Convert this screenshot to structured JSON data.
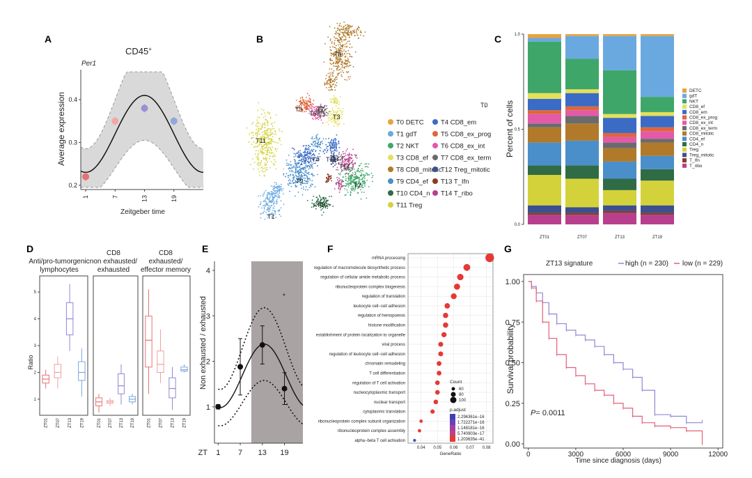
{
  "panels": {
    "A": {
      "letter": "A",
      "title": "CD45",
      "title_sup": "+",
      "gene": "Per1",
      "ylabel": "Average expression",
      "xlabel": "Zeitgeber time",
      "xticks": [
        "1",
        "7",
        "13",
        "19"
      ],
      "yticks": [
        "0.2",
        "0.3",
        "0.4"
      ],
      "chart_data": {
        "type": "scatter",
        "x": [
          1,
          7,
          13,
          19
        ],
        "y": [
          0.22,
          0.35,
          0.38,
          0.35
        ],
        "colors": [
          "#e57373",
          "#f4a6a6",
          "#9b8fd6",
          "#8fa8d6"
        ],
        "ylim": [
          0.19,
          0.47
        ],
        "xlim": [
          0,
          25
        ]
      }
    },
    "B": {
      "letter": "B",
      "clusters": [
        {
          "id": "T0",
          "label": "T0 DETC",
          "color": "#e8a33d"
        },
        {
          "id": "T1",
          "label": "T1 gdT",
          "color": "#6aa9e0"
        },
        {
          "id": "T2",
          "label": "T2 NKT",
          "color": "#3fa66a"
        },
        {
          "id": "T3",
          "label": "T3 CD8_ef",
          "color": "#e5e05a"
        },
        {
          "id": "T4",
          "label": "T4 CD8_em",
          "color": "#3b6bc4"
        },
        {
          "id": "T5",
          "label": "T5 CD8_ex_prog",
          "color": "#e0663a"
        },
        {
          "id": "T6",
          "label": "T6 CD8_ex_int",
          "color": "#e25aa8"
        },
        {
          "id": "T7",
          "label": "T7 CD8_ex_term",
          "color": "#6b6b6b"
        },
        {
          "id": "T8",
          "label": "T8 CD8_mitotic",
          "color": "#b07a2a"
        },
        {
          "id": "T9",
          "label": "T9 CD4_ef",
          "color": "#4a8fc9"
        },
        {
          "id": "T10",
          "label": "T10 CD4_n",
          "color": "#2f6b45"
        },
        {
          "id": "T11",
          "label": "T11 Treg",
          "color": "#d4d23a"
        },
        {
          "id": "T12",
          "label": "T12 Treg_mitotic",
          "color": "#3c4f8f"
        },
        {
          "id": "T13",
          "label": "T13 T_Ifn",
          "color": "#8a3b22"
        },
        {
          "id": "T14",
          "label": "T14 T_ribo",
          "color": "#b83f8e"
        }
      ]
    },
    "C": {
      "letter": "C",
      "ylabel": "Percent of cells",
      "yticks": [
        "0.0",
        "0.5",
        "1.0"
      ],
      "chart_data": {
        "type": "bar",
        "stacked": true,
        "categories": [
          "ZT01",
          "ZT07",
          "ZT13",
          "ZT19"
        ],
        "series": [
          {
            "name": "T_ribo",
            "color": "#b83f8e",
            "values": [
              0.05,
              0.05,
              0.06,
              0.05
            ]
          },
          {
            "name": "T_Ifn",
            "color": "#8a3b22",
            "values": [
              0.01,
              0.01,
              0.01,
              0.01
            ]
          },
          {
            "name": "Treg_mitotic",
            "color": "#3c4f8f",
            "values": [
              0.04,
              0.03,
              0.03,
              0.04
            ]
          },
          {
            "name": "Treg",
            "color": "#d4d23a",
            "values": [
              0.16,
              0.15,
              0.08,
              0.13
            ]
          },
          {
            "name": "CD4_n",
            "color": "#2f6b45",
            "values": [
              0.05,
              0.07,
              0.06,
              0.06
            ]
          },
          {
            "name": "CD4_ef",
            "color": "#4a8fc9",
            "values": [
              0.12,
              0.13,
              0.09,
              0.07
            ]
          },
          {
            "name": "CD8_mitotic",
            "color": "#b07a2a",
            "values": [
              0.08,
              0.09,
              0.07,
              0.07
            ]
          },
          {
            "name": "CD8_ex_term",
            "color": "#6b6b6b",
            "values": [
              0.02,
              0.04,
              0.03,
              0.02
            ]
          },
          {
            "name": "CD8_ex_int",
            "color": "#e25aa8",
            "values": [
              0.05,
              0.03,
              0.03,
              0.04
            ]
          },
          {
            "name": "CD8_ex_prog",
            "color": "#e0663a",
            "values": [
              0.02,
              0.02,
              0.02,
              0.02
            ]
          },
          {
            "name": "CD8_em",
            "color": "#3b6bc4",
            "values": [
              0.06,
              0.07,
              0.08,
              0.06
            ]
          },
          {
            "name": "CD8_ef",
            "color": "#e5e05a",
            "values": [
              0.03,
              0.02,
              0.02,
              0.02
            ]
          },
          {
            "name": "NKT",
            "color": "#3fa66a",
            "values": [
              0.27,
              0.16,
              0.23,
              0.08
            ]
          },
          {
            "name": "gdT",
            "color": "#6aa9e0",
            "values": [
              0.02,
              0.12,
              0.18,
              0.32
            ]
          },
          {
            "name": "DETC",
            "color": "#e8a33d",
            "values": [
              0.02,
              0.01,
              0.01,
              0.01
            ]
          }
        ],
        "legend": [
          "DETC",
          "gdT",
          "NKT",
          "CD8_ef",
          "CD8_em",
          "CD8_ex_prog",
          "CD8_ex_int",
          "CD8_ex_term",
          "CD8_mitotic",
          "CD4_ef",
          "CD4_n",
          "Treg",
          "Treg_mitotic",
          "T_Ifn",
          "T_ribo"
        ]
      }
    },
    "D": {
      "letter": "D",
      "ylabel": "Ratio",
      "yticks": [
        "1",
        "2",
        "3",
        "4",
        "5"
      ],
      "subtitles": [
        "Anti/pro-tumorgenic",
        "lymphocytes",
        "CD8",
        "non exhausted/",
        "exhausted",
        "CD8",
        "exhausted/",
        "effector memory"
      ],
      "xticks": [
        "ZT01",
        "ZT07",
        "ZT13",
        "ZT19"
      ],
      "chart_data": {
        "type": "box",
        "groups": [
          {
            "name": "Anti/pro-tumorgenic lymphocytes",
            "boxes": [
              [
                1.4,
                1.6,
                1.75,
                1.9,
                2.1
              ],
              [
                1.4,
                1.8,
                2.0,
                2.3,
                2.6
              ],
              [
                2.8,
                3.4,
                4.0,
                4.6,
                5.3
              ],
              [
                1.1,
                1.7,
                2.0,
                2.4,
                2.9
              ]
            ]
          },
          {
            "name": "CD8 non exhausted/exhausted",
            "boxes": [
              [
                0.5,
                0.75,
                0.9,
                1.05,
                1.2
              ],
              [
                0.75,
                0.85,
                0.9,
                0.95,
                1.05
              ],
              [
                0.8,
                1.2,
                1.5,
                1.95,
                2.3
              ],
              [
                0.8,
                0.9,
                1.0,
                1.1,
                1.2
              ]
            ]
          },
          {
            "name": "CD8 exhausted/effector memory",
            "boxes": [
              [
                1.2,
                2.2,
                3.2,
                4.1,
                5.1
              ],
              [
                1.6,
                2.0,
                2.3,
                2.8,
                3.6
              ],
              [
                0.6,
                1.05,
                1.4,
                1.8,
                2.2
              ],
              [
                2.0,
                2.05,
                2.1,
                2.2,
                2.3
              ]
            ]
          }
        ],
        "colors": [
          "#e57373",
          "#f0a0a0",
          "#8f87d6",
          "#7ba6e0"
        ],
        "ylim": [
          0.4,
          5.6
        ]
      }
    },
    "E": {
      "letter": "E",
      "ylabel": "Non exhausted / exhausted",
      "xlabel": "ZT",
      "xticks": [
        "1",
        "7",
        "13",
        "19"
      ],
      "yticks": [
        "1",
        "2",
        "3",
        "4"
      ],
      "star": "*",
      "chart_data": {
        "type": "line",
        "x": [
          1,
          7,
          13,
          19
        ],
        "y": [
          1.0,
          1.88,
          2.36,
          1.4
        ],
        "err": [
          0.05,
          0.62,
          0.42,
          0.35
        ],
        "ylim": [
          0.2,
          4.2
        ],
        "xlim": [
          0,
          24
        ],
        "shaded_from": 10
      }
    },
    "F": {
      "letter": "F",
      "xlabel": "GeneRatio",
      "xticks": [
        "0.04",
        "0.05",
        "0.06",
        "0.07",
        "0.08"
      ],
      "count_title": "Count",
      "count_labels": [
        "60",
        "80",
        "100"
      ],
      "padj_title": "p.adjust",
      "padj_labels": [
        "2.296361e−16",
        "1.722271e−16",
        "1.148181e−16",
        "5.740903e−17",
        "1.203635e−41"
      ],
      "chart_data": {
        "type": "dot",
        "xlim": [
          0.032,
          0.084
        ],
        "terms": [
          {
            "name": "mRNA processing",
            "x": 0.082,
            "highlight": false
          },
          {
            "name": "regulation of macromolecule biosynthetic process",
            "x": 0.068,
            "highlight": false
          },
          {
            "name": "regulation of cellular amide metabolic process",
            "x": 0.064,
            "highlight": false
          },
          {
            "name": "ribonucleoprotein complex biogenesis",
            "x": 0.062,
            "highlight": false
          },
          {
            "name": "regulation of translation",
            "x": 0.06,
            "highlight": false
          },
          {
            "name": "leukocyte cell−cell adhesion",
            "x": 0.056,
            "highlight": true
          },
          {
            "name": "regulation of hemopoiesis",
            "x": 0.055,
            "highlight": false
          },
          {
            "name": "histone modification",
            "x": 0.055,
            "highlight": false
          },
          {
            "name": "establishment of protein localization to organelle",
            "x": 0.054,
            "highlight": false
          },
          {
            "name": "viral process",
            "x": 0.052,
            "highlight": false
          },
          {
            "name": "regulation of leukocyte cell−cell adhesion",
            "x": 0.052,
            "highlight": true
          },
          {
            "name": "chromatin remodeling",
            "x": 0.051,
            "highlight": false
          },
          {
            "name": "T cell differentiation",
            "x": 0.051,
            "highlight": true
          },
          {
            "name": "regulation of T cell activation",
            "x": 0.05,
            "highlight": true
          },
          {
            "name": "nucleocytoplasmic transport",
            "x": 0.05,
            "highlight": false
          },
          {
            "name": "nuclear transport",
            "x": 0.049,
            "highlight": false
          },
          {
            "name": "cytoplasmic translation",
            "x": 0.047,
            "highlight": false
          },
          {
            "name": "ribonucleoprotein complex subunit organization",
            "x": 0.04,
            "highlight": false
          },
          {
            "name": "ribonucleoprotein complex assembly",
            "x": 0.039,
            "highlight": false
          },
          {
            "name": "alpha−beta T cell activation",
            "x": 0.036,
            "highlight": true
          }
        ]
      }
    },
    "G": {
      "letter": "G",
      "legend_title": "ZT13 signature",
      "legend_high": "high (n = 230)",
      "legend_low": "low (n = 229)",
      "ylabel": "Survival probability",
      "xlabel": "Time since diagnosis (days)",
      "xticks": [
        "0",
        "3000",
        "6000",
        "9000",
        "12000"
      ],
      "yticks": [
        "0.00",
        "0.25",
        "0.50",
        "0.75",
        "1.00"
      ],
      "pvalue": "= 0.0011",
      "pvalue_p": "P",
      "chart_data": {
        "type": "line",
        "xlim": [
          -300,
          12300
        ],
        "ylim": [
          0,
          1.04
        ],
        "series": [
          {
            "name": "high",
            "color": "#8f87d6",
            "x": [
              0,
              200,
              500,
              900,
              1300,
              1800,
              2400,
              3000,
              3600,
              4200,
              4800,
              5400,
              6000,
              6600,
              7200,
              8000,
              9000,
              10000,
              11000
            ],
            "y": [
              1.0,
              0.97,
              0.93,
              0.87,
              0.8,
              0.74,
              0.7,
              0.67,
              0.64,
              0.6,
              0.55,
              0.5,
              0.46,
              0.41,
              0.33,
              0.18,
              0.17,
              0.13,
              0.14
            ]
          },
          {
            "name": "low",
            "color": "#e0607a",
            "x": [
              0,
              200,
              500,
              900,
              1300,
              1800,
              2400,
              3000,
              3600,
              4200,
              4800,
              5400,
              6000,
              6600,
              7200,
              8000,
              9000,
              10000,
              11000
            ],
            "y": [
              1.0,
              0.96,
              0.88,
              0.75,
              0.65,
              0.55,
              0.47,
              0.42,
              0.37,
              0.33,
              0.3,
              0.25,
              0.22,
              0.17,
              0.13,
              0.11,
              0.1,
              0.08,
              0.0
            ]
          }
        ]
      }
    }
  }
}
